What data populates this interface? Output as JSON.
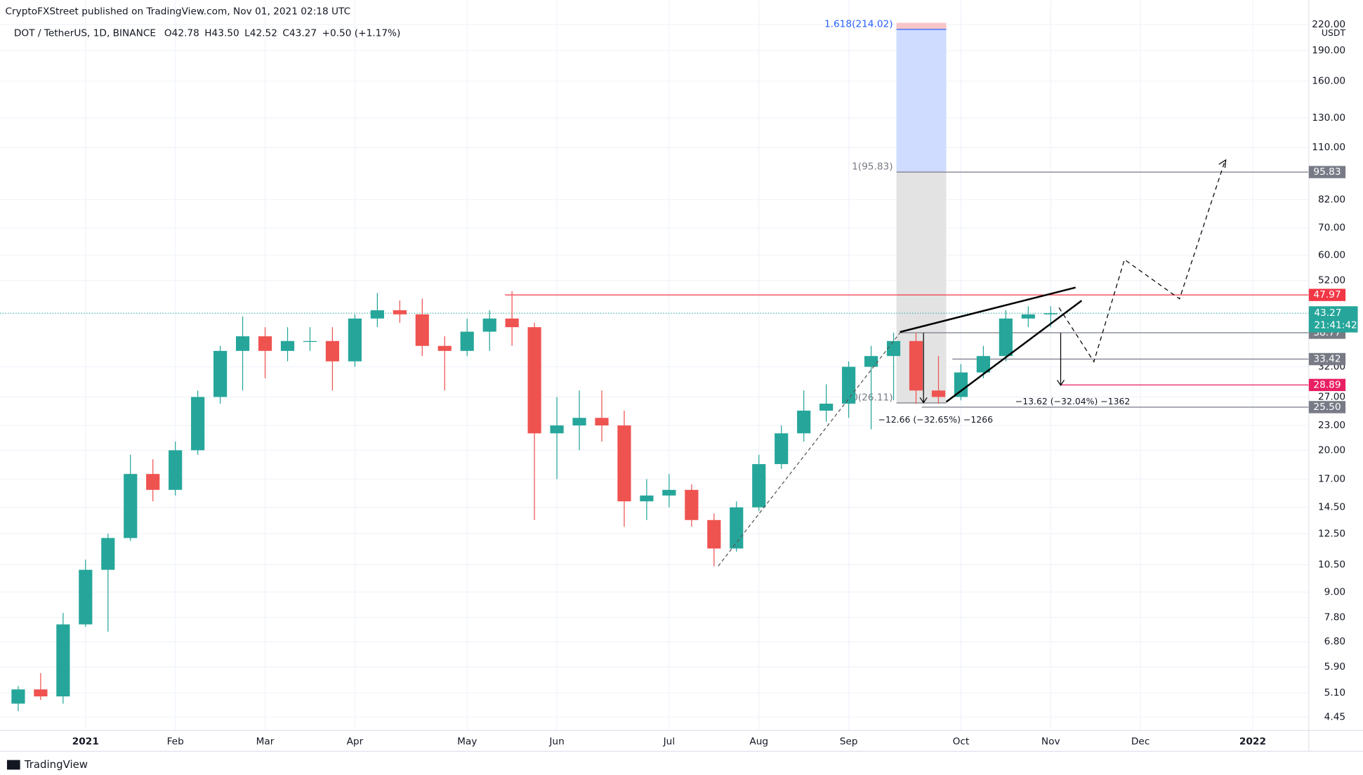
{
  "published": "CryptoFXStreet published on TradingView.com, Nov 01, 2021 02:18 UTC",
  "legend": {
    "symbol": "DOT / TetherUS, 1D, BINANCE",
    "items": [
      "O42.78",
      "H43.50",
      "L42.52",
      "C43.27",
      "+0.50 (+1.17%)"
    ],
    "countdown": "21:41:42",
    "currency": "USDT"
  },
  "footer": "TradingView",
  "chart_data": {
    "type": "candlestick",
    "log_scale": true,
    "grid": true,
    "up_color": "#26a69a",
    "down_color": "#ef5350",
    "categories": [
      null,
      null,
      null,
      "2021",
      null,
      null,
      null,
      "Feb",
      null,
      null,
      null,
      "Mar",
      null,
      null,
      null,
      "Apr",
      null,
      null,
      null,
      null,
      "May",
      null,
      null,
      null,
      "Jun",
      null,
      null,
      null,
      null,
      "Jul",
      null,
      null,
      null,
      "Aug",
      null,
      null,
      null,
      "Sep",
      null,
      null,
      null,
      null,
      "Oct",
      null,
      null,
      null,
      "Nov",
      null,
      null,
      null,
      "Dec",
      null,
      null,
      null,
      null,
      "2022",
      null,
      null
    ],
    "open": [
      4.8,
      5.2,
      5.0,
      7.5,
      10.2,
      12.2,
      17.5,
      16,
      20,
      27,
      35,
      38,
      35,
      37,
      37,
      33,
      42,
      44,
      43,
      36,
      35,
      39,
      42,
      40,
      22,
      23,
      24,
      23,
      15,
      15.5,
      16,
      13.5,
      11.5,
      14.5,
      18.5,
      22,
      25,
      26,
      32,
      34,
      37,
      28,
      27,
      31,
      34,
      42,
      43,
      null,
      null,
      null,
      null,
      null,
      null,
      null,
      null,
      null,
      null,
      null
    ],
    "high": [
      5.3,
      5.7,
      8.0,
      10.8,
      12.5,
      19.5,
      19.0,
      21,
      28,
      36,
      42.5,
      40,
      40,
      40,
      40,
      43,
      48.5,
      46.5,
      47,
      38,
      42,
      44,
      49,
      41,
      27,
      28,
      28,
      25,
      17,
      17.5,
      16.5,
      14,
      15,
      19.5,
      23,
      28,
      29,
      33,
      36,
      38.8,
      38.8,
      34,
      32.5,
      36,
      44,
      45,
      45,
      null,
      null,
      null,
      null,
      null,
      null,
      null,
      null,
      null,
      null,
      null
    ],
    "low": [
      4.6,
      4.9,
      4.8,
      7.4,
      7.2,
      12.0,
      15.0,
      15.5,
      19.5,
      26,
      28,
      30,
      33,
      35,
      28,
      32,
      40,
      41,
      34,
      28,
      34,
      35,
      36,
      13.5,
      17,
      20,
      21,
      13,
      13.5,
      14.5,
      13,
      10.4,
      11.3,
      14.2,
      18,
      21,
      23.5,
      24,
      22.5,
      26.5,
      26,
      26,
      26.5,
      30,
      33,
      40,
      40,
      null,
      null,
      null,
      null,
      null,
      null,
      null,
      null,
      null,
      null,
      null
    ],
    "close": [
      5.2,
      5.0,
      7.5,
      10.2,
      12.2,
      17.5,
      16,
      20,
      27,
      35,
      38,
      35,
      37,
      37,
      33,
      42,
      44,
      43,
      36,
      35,
      39,
      42,
      40,
      22,
      23,
      24,
      23,
      15,
      15.5,
      16,
      13.5,
      11.5,
      14.5,
      18.5,
      22,
      25,
      26,
      32,
      34,
      37,
      28,
      27,
      31,
      34,
      42,
      43,
      43.27,
      null,
      null,
      null,
      null,
      null,
      null,
      null,
      null,
      null,
      null,
      null
    ],
    "ylim": [
      4.13,
      231
    ],
    "yticks": [
      4.45,
      {
        "value": 5.1,
        "label": "5.10"
      },
      {
        "value": 5.9,
        "label": "5.90"
      },
      {
        "value": 6.8,
        "label": "6.80"
      },
      {
        "value": 7.8,
        "label": "7.80"
      },
      {
        "value": 9,
        "label": "9.00"
      },
      {
        "value": 10.5,
        "label": "10.50"
      },
      {
        "value": 12.5,
        "label": "12.50"
      },
      {
        "value": 14.5,
        "label": "14.50"
      },
      {
        "value": 17,
        "label": "17.00"
      },
      {
        "value": 20,
        "label": "20.00"
      },
      {
        "value": 23,
        "label": "23.00"
      },
      {
        "value": 27,
        "label": "27.00"
      },
      {
        "value": 32,
        "label": "32.00"
      },
      {
        "value": 52,
        "label": "52.00"
      },
      {
        "value": 60,
        "label": "60.00"
      },
      {
        "value": 70,
        "label": "70.00"
      },
      {
        "value": 82,
        "label": "82.00"
      },
      {
        "value": 110,
        "label": "110.00"
      },
      {
        "value": 130,
        "label": "130.00"
      },
      {
        "value": 160,
        "label": "160.00"
      },
      {
        "value": 190,
        "label": "190.00"
      },
      {
        "value": 220,
        "label": "220.00"
      }
    ],
    "levels": [
      {
        "value": 95.83,
        "color": "#787b86"
      },
      {
        "value": 47.97,
        "color": "#f23645"
      },
      {
        "value": 38.77,
        "color": "#787b86"
      },
      {
        "value": 33.42,
        "color": "#787b86"
      },
      {
        "value": 28.89,
        "color": "#e91e63"
      },
      {
        "value": 25.5,
        "label": "25.50",
        "color": "#787b86"
      }
    ],
    "fib": [
      {
        "value": 214.02,
        "label": "1.618(214.02)"
      },
      {
        "value": 95.83,
        "label": "1(95.83)"
      },
      {
        "value": 26.11,
        "label": "0(26.11)"
      }
    ],
    "measurements": [
      "−12.66 (−32.65%) −1266",
      "−13.62 (−32.04%) −1362"
    ]
  }
}
